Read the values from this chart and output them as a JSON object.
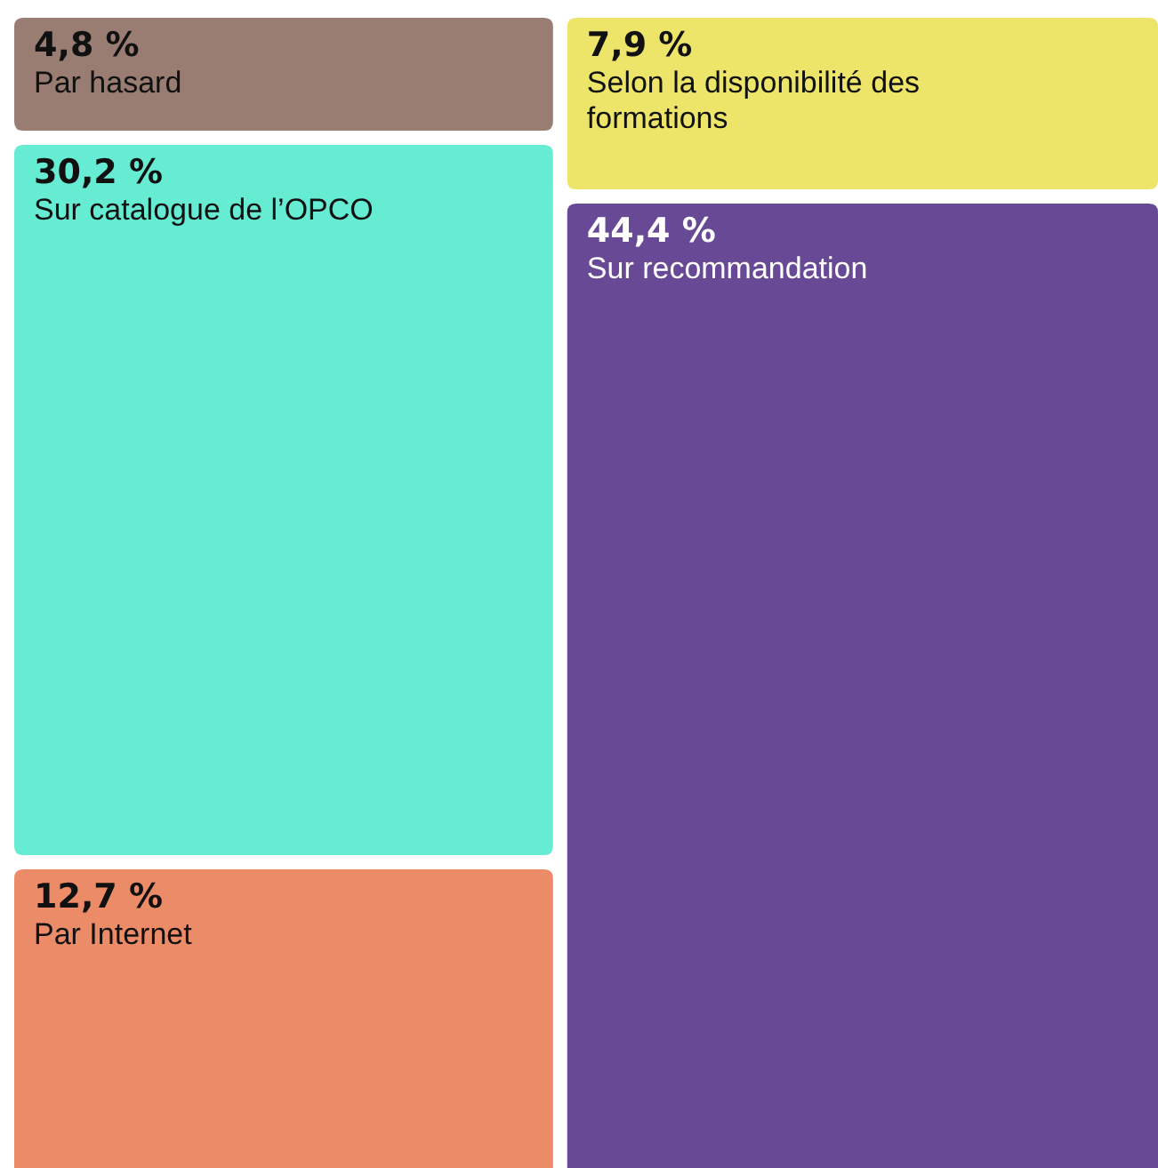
{
  "chart_data": {
    "type": "other",
    "categories": [
      "Par hasard",
      "Sur catalogue de l’OPCO",
      "Par Internet",
      "Selon la disponibilité des formations",
      "Sur recommandation"
    ],
    "values": [
      4.8,
      30.2,
      12.7,
      7.9,
      44.4
    ],
    "value_labels": [
      "4,8 %",
      "30,2 %",
      "12,7 %",
      "7,9 %",
      "44,4 %"
    ],
    "colors": [
      "#9a7d72",
      "#66ecd3",
      "#ec8b68",
      "#ece56a",
      "#684996"
    ]
  }
}
